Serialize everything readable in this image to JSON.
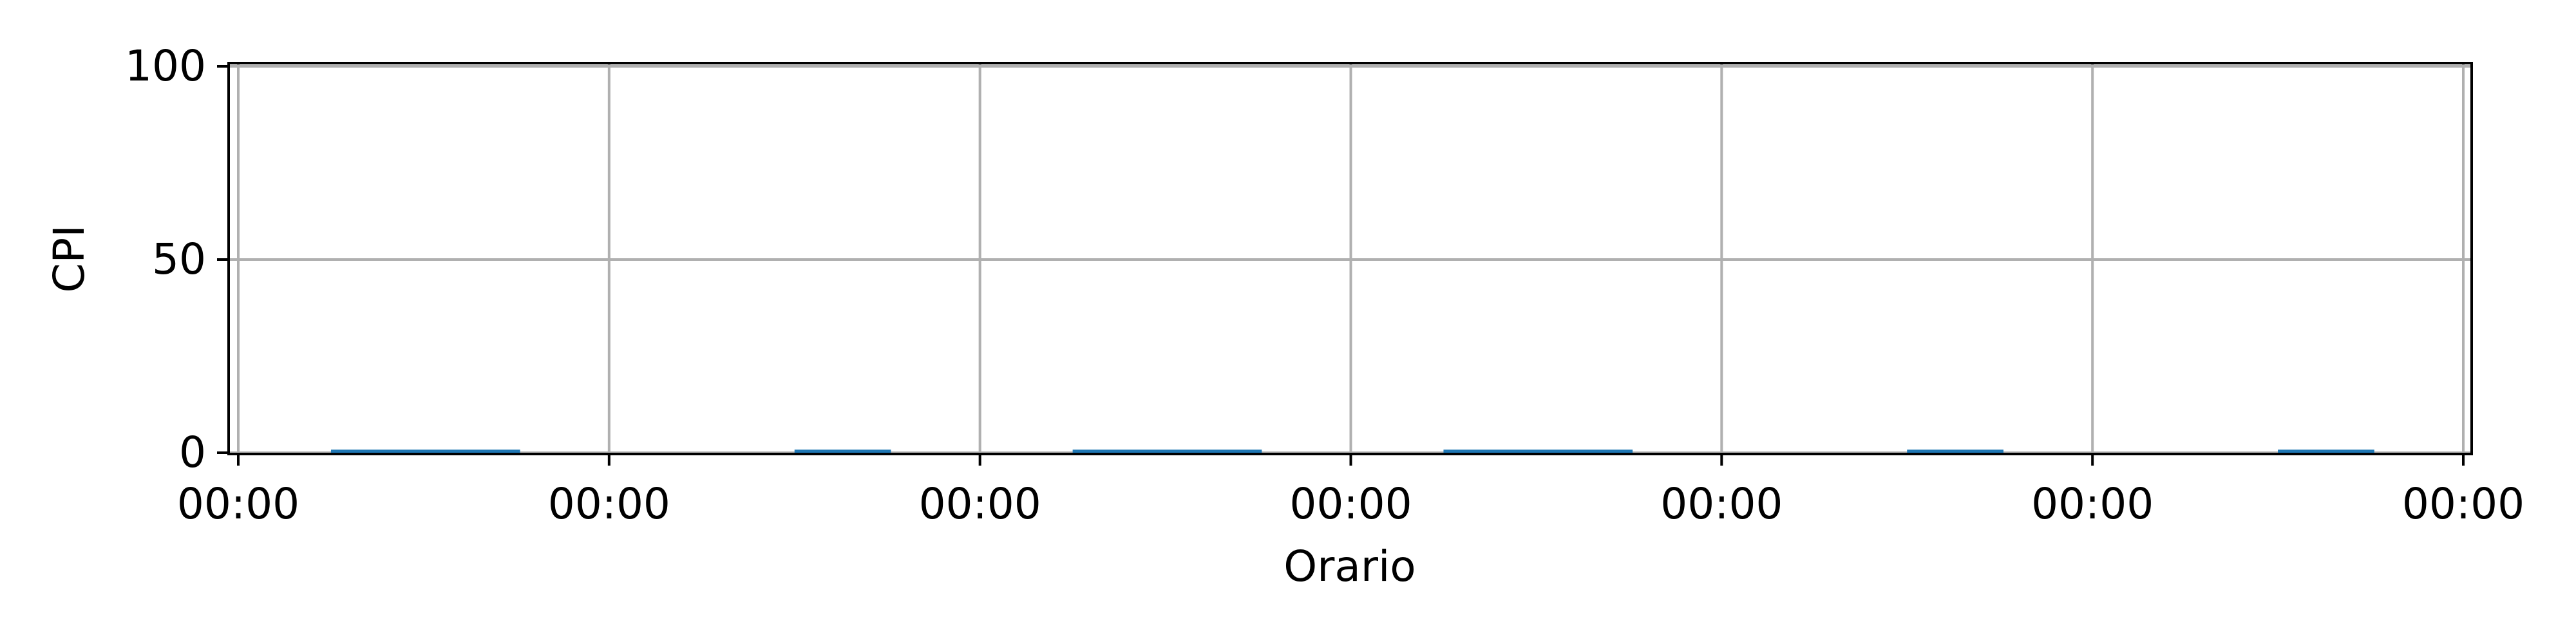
{
  "chart_data": {
    "type": "bar",
    "title": "",
    "xlabel": "Orario",
    "ylabel": "CPI",
    "x_ticks": [
      "00:00",
      "00:00",
      "00:00",
      "00:00",
      "00:00",
      "00:00",
      "00:00"
    ],
    "y_ticks": [
      "0",
      "50",
      "100"
    ],
    "ylim": [
      0,
      100
    ],
    "xlim": [
      0,
      6
    ],
    "grid": true,
    "bar_color": "#1f77b4",
    "bars": [
      {
        "start": 0.25,
        "end": 0.76,
        "value": 0.8
      },
      {
        "start": 1.5,
        "end": 1.76,
        "value": 0.8
      },
      {
        "start": 2.25,
        "end": 2.76,
        "value": 0.8
      },
      {
        "start": 3.25,
        "end": 3.76,
        "value": 0.8
      },
      {
        "start": 4.5,
        "end": 4.76,
        "value": 0.8
      },
      {
        "start": 5.5,
        "end": 5.76,
        "value": 0.8
      }
    ]
  }
}
